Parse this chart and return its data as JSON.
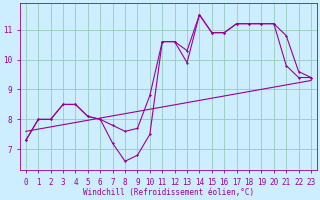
{
  "background_color": "#cceeff",
  "line_color": "#990099",
  "grid_color": "#99ccbb",
  "xlabel": "Windchill (Refroidissement éolien,°C)",
  "x_hours": [
    0,
    1,
    2,
    3,
    4,
    5,
    6,
    7,
    8,
    9,
    10,
    11,
    12,
    13,
    14,
    15,
    16,
    17,
    18,
    19,
    20,
    21,
    22,
    23
  ],
  "y_windchill": [
    7.3,
    8.0,
    8.0,
    8.5,
    8.5,
    8.1,
    8.0,
    7.2,
    6.6,
    6.8,
    7.5,
    10.6,
    10.6,
    9.9,
    11.5,
    10.9,
    10.9,
    11.2,
    11.2,
    11.2,
    11.2,
    9.8,
    9.4,
    9.4
  ],
  "y_temp": [
    7.3,
    8.0,
    8.0,
    8.5,
    8.5,
    8.1,
    8.0,
    7.8,
    7.6,
    7.7,
    8.8,
    10.6,
    10.6,
    10.3,
    11.5,
    10.9,
    10.9,
    11.2,
    11.2,
    11.2,
    11.2,
    10.8,
    9.6,
    9.4
  ],
  "reg_y_start": 7.6,
  "reg_y_end": 9.3,
  "ylim": [
    6.3,
    11.9
  ],
  "yticks": [
    7,
    8,
    9,
    10,
    11
  ],
  "xticks": [
    0,
    1,
    2,
    3,
    4,
    5,
    6,
    7,
    8,
    9,
    10,
    11,
    12,
    13,
    14,
    15,
    16,
    17,
    18,
    19,
    20,
    21,
    22,
    23
  ],
  "tick_labelsize": 5.5,
  "xlabel_fontsize": 5.5
}
